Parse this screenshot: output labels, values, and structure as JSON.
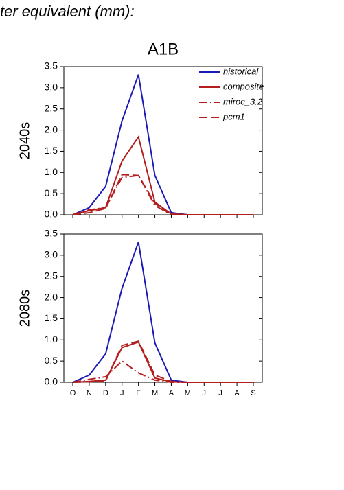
{
  "header": {
    "title": "ter equivalent (mm):"
  },
  "chart_data": [
    {
      "type": "line",
      "title": "A1B",
      "ylabel": "2040s",
      "show_xlabels": false,
      "legend": "upper right",
      "categories": [
        "O",
        "N",
        "D",
        "J",
        "F",
        "M",
        "A",
        "M",
        "J",
        "J",
        "A",
        "S"
      ],
      "ylim": [
        0,
        3.5
      ],
      "yticks": [
        {
          "value": 0,
          "label": "0.0"
        },
        {
          "value": 0.5,
          "label": "0.5"
        },
        {
          "value": 1,
          "label": "1.0"
        },
        {
          "value": 1.5,
          "label": "1.5"
        },
        {
          "value": 2,
          "label": "2.0"
        },
        {
          "value": 2.5,
          "label": "2.5"
        },
        {
          "value": 3,
          "label": "3.0"
        },
        {
          "value": 3.5,
          "label": "3.5"
        }
      ],
      "series": [
        {
          "name": "historical",
          "color": "#1a1ab4",
          "dash": "solid",
          "values": [
            0,
            0.17,
            0.67,
            2.22,
            3.31,
            0.93,
            0.05,
            0,
            0,
            0,
            0,
            0
          ]
        },
        {
          "name": "composite",
          "color": "#b41e1e",
          "dash": "solid",
          "values": [
            0,
            0.1,
            0.17,
            1.27,
            1.84,
            0.3,
            0.02,
            0,
            0,
            0,
            0,
            0
          ]
        },
        {
          "name": "miroc_3.2",
          "color": "#b41e1e",
          "dash": "dashdot",
          "values": [
            0,
            0.12,
            0.17,
            0.88,
            0.93,
            0.22,
            0,
            0,
            0,
            0,
            0,
            0
          ]
        },
        {
          "name": "pcm1",
          "color": "#b41e1e",
          "dash": "dashed",
          "values": [
            0,
            0.05,
            0.15,
            0.95,
            0.93,
            0.27,
            0,
            0,
            0,
            0,
            0,
            0
          ]
        }
      ]
    },
    {
      "type": "line",
      "ylabel": "2080s",
      "show_xlabels": true,
      "categories": [
        "O",
        "N",
        "D",
        "J",
        "F",
        "M",
        "A",
        "M",
        "J",
        "J",
        "A",
        "S"
      ],
      "ylim": [
        0,
        3.5
      ],
      "yticks": [
        {
          "value": 0,
          "label": "0.0"
        },
        {
          "value": 0.5,
          "label": "0.5"
        },
        {
          "value": 1,
          "label": "1.0"
        },
        {
          "value": 1.5,
          "label": "1.5"
        },
        {
          "value": 2,
          "label": "2.0"
        },
        {
          "value": 2.5,
          "label": "2.5"
        },
        {
          "value": 3,
          "label": "3.0"
        },
        {
          "value": 3.5,
          "label": "3.5"
        }
      ],
      "series": [
        {
          "color": "#1a1ab4",
          "dash": "solid",
          "values": [
            0,
            0.17,
            0.67,
            2.22,
            3.31,
            0.93,
            0.05,
            0,
            0,
            0,
            0,
            0
          ]
        },
        {
          "color": "#b41e1e",
          "dash": "solid",
          "values": [
            0,
            0.02,
            0.05,
            0.82,
            0.95,
            0.1,
            0.01,
            0,
            0,
            0,
            0,
            0
          ]
        },
        {
          "color": "#b41e1e",
          "dash": "dashdot",
          "values": [
            0,
            0.07,
            0.13,
            0.5,
            0.22,
            0.05,
            0,
            0,
            0,
            0,
            0,
            0
          ]
        },
        {
          "color": "#b41e1e",
          "dash": "dashed",
          "values": [
            0,
            0.01,
            0.03,
            0.87,
            0.97,
            0.17,
            0.02,
            0,
            0,
            0,
            0,
            0
          ]
        }
      ]
    }
  ]
}
